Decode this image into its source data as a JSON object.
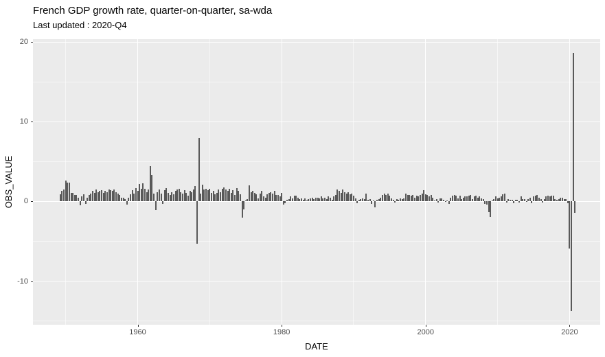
{
  "title": "French GDP growth rate, quarter-on-quarter, sa-wda",
  "subtitle": "Last updated : 2020-Q4",
  "chart_data": {
    "type": "bar",
    "title": "French GDP growth rate, quarter-on-quarter, sa-wda",
    "subtitle": "Last updated : 2020-Q4",
    "xlabel": "DATE",
    "ylabel": "OBS_VALUE",
    "frequency": "quarterly",
    "start": "1949-Q2",
    "end": "2020-Q4",
    "x_tick_labels": [
      "1960",
      "1980",
      "2000",
      "2020"
    ],
    "x_major_ticks": [
      1960,
      1980,
      2000,
      2020
    ],
    "x_minor_ticks": [
      1950,
      1970,
      1990,
      2010
    ],
    "y_tick_labels": [
      "20",
      "10",
      "0",
      "-10"
    ],
    "y_major_ticks": [
      20,
      10,
      0,
      -10
    ],
    "y_minor_ticks": [
      15,
      5,
      -5,
      -15
    ],
    "xlim": [
      1945.45,
      2024.25
    ],
    "ylim": [
      -15.45,
      20.35
    ],
    "grid": "on",
    "legend": "none",
    "colors": {
      "bar": "#595959",
      "panel_background": "#EBEBEB",
      "gridline": "#FFFFFF",
      "tick_label": "#4D4D4D",
      "tick_mark": "#333333",
      "text": "#000000",
      "plot_background": "#FFFFFF"
    },
    "values": [
      0.9,
      1.3,
      1.5,
      2.6,
      2.4,
      2.4,
      1.1,
      1.1,
      0.8,
      0.8,
      0.5,
      -0.5,
      0.6,
      0.9,
      -0.3,
      0.5,
      0.8,
      1.0,
      1.3,
      1.1,
      1.5,
      1.2,
      1.3,
      1.4,
      1.1,
      1.3,
      1.2,
      1.5,
      1.4,
      1.3,
      1.5,
      1.2,
      1.0,
      0.8,
      0.5,
      0.5,
      0.3,
      -0.4,
      0.5,
      0.9,
      1.4,
      1.0,
      1.7,
      1.3,
      2.2,
      1.6,
      2.3,
      1.6,
      1.2,
      1.5,
      4.4,
      3.3,
      1.0,
      -1.1,
      1.2,
      1.5,
      1.0,
      -0.3,
      1.4,
      1.7,
      1.1,
      0.8,
      1.2,
      0.9,
      1.3,
      1.5,
      1.6,
      1.2,
      1.0,
      1.4,
      1.1,
      0.7,
      1.3,
      1.2,
      1.5,
      1.9,
      -5.3,
      8.0,
      1.0,
      2.1,
      1.5,
      1.6,
      1.4,
      1.6,
      1.1,
      1.3,
      0.9,
      1.1,
      1.5,
      1.2,
      1.6,
      1.8,
      1.5,
      1.3,
      1.6,
      1.1,
      1.4,
      0.8,
      1.7,
      1.3,
      0.9,
      -2.0,
      -1.0,
      0.1,
      0.3,
      2.0,
      1.2,
      1.3,
      1.1,
      0.9,
      0.4,
      1.0,
      1.3,
      0.6,
      0.5,
      0.9,
      1.1,
      1.2,
      1.0,
      1.3,
      0.8,
      0.8,
      0.6,
      1.1,
      -0.4,
      -0.2,
      0.2,
      0.3,
      0.6,
      0.4,
      0.7,
      0.7,
      0.5,
      0.3,
      0.4,
      0.2,
      0.4,
      0.1,
      0.3,
      0.4,
      0.5,
      0.3,
      0.5,
      0.5,
      0.4,
      0.6,
      0.4,
      0.5,
      0.3,
      0.6,
      0.5,
      0.2,
      0.6,
      0.8,
      1.5,
      1.3,
      1.1,
      1.5,
      1.2,
      1.0,
      1.2,
      0.9,
      1.0,
      0.7,
      0.4,
      -0.2,
      0.2,
      0.3,
      0.4,
      0.3,
      1.0,
      0.2,
      0.3,
      -0.3,
      0.1,
      -0.7,
      0.2,
      0.3,
      0.5,
      0.8,
      1.0,
      0.8,
      1.0,
      0.7,
      0.4,
      0.2,
      -0.1,
      0.3,
      0.2,
      0.4,
      0.3,
      0.4,
      1.0,
      0.8,
      0.8,
      0.7,
      0.8,
      0.5,
      0.7,
      0.6,
      0.8,
      1.0,
      1.4,
      0.9,
      0.8,
      0.6,
      0.8,
      0.5,
      0.1,
      0.3,
      -0.1,
      0.4,
      0.4,
      0.2,
      0.0,
      0.1,
      -0.3,
      0.5,
      0.7,
      0.8,
      0.7,
      0.4,
      0.7,
      0.3,
      0.5,
      0.6,
      0.6,
      0.7,
      0.8,
      0.3,
      0.6,
      0.7,
      0.5,
      0.6,
      0.4,
      0.3,
      -0.3,
      -0.4,
      -1.3,
      -1.9,
      0.1,
      0.3,
      0.6,
      0.4,
      0.5,
      0.6,
      0.9,
      1.0,
      -0.1,
      0.3,
      0.2,
      0.2,
      -0.2,
      0.2,
      0.2,
      -0.1,
      0.6,
      0.3,
      0.3,
      0.0,
      0.3,
      0.5,
      -0.2,
      0.6,
      0.7,
      0.8,
      0.5,
      0.3,
      -0.1,
      0.3,
      0.6,
      0.7,
      0.6,
      0.7,
      0.7,
      0.3,
      0.2,
      0.3,
      0.5,
      0.5,
      0.3,
      0.3,
      -0.2,
      -5.9,
      -13.7,
      18.6,
      -1.4
    ]
  }
}
